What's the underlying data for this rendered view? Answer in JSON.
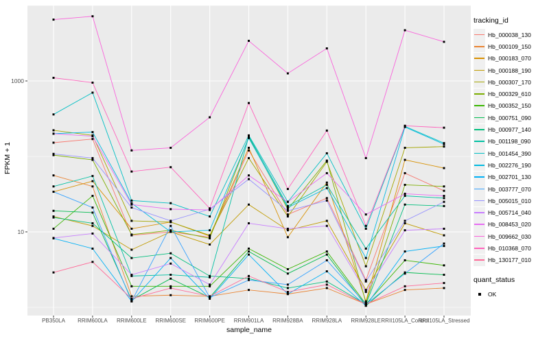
{
  "figure": {
    "panel_background": "#ebebeb",
    "gridline_color": "#ffffff",
    "axis_text_color": "#4d4d4d",
    "point_color": "#000000",
    "legend_key_background": "#f0f0f0"
  },
  "chart_data": {
    "type": "line",
    "title": "",
    "xlabel": "sample_name",
    "ylabel": "FPKM + 1",
    "y_scale": "log10",
    "grid": true,
    "legend_position": "right",
    "legend_title": "tracking_id",
    "point_legend": {
      "title": "quant_status",
      "items": [
        {
          "label": "OK"
        }
      ]
    },
    "ylim": [
      0.75,
      10000
    ],
    "y_ticks": [
      {
        "label": "1000",
        "value": 1000
      },
      {
        "label": "10",
        "value": 10
      }
    ],
    "y_minor": [
      10000,
      100,
      1
    ],
    "categories": [
      "PB350LA",
      "RRIM600LA",
      "RRIM600LE",
      "RRIM600SE",
      "RRIM600PE",
      "RRIM901LA",
      "RRIM928BA",
      "RRIM928LA",
      "RRIM928LE",
      "RRII105LA_Control",
      "RRII105LA_Stressed"
    ],
    "point_shape": "square",
    "series": [
      {
        "name": "Hb_000038_130",
        "color": "#F8766D",
        "values": [
          152,
          170,
          9,
          10,
          8.5,
          120,
          17,
          28,
          2.3,
          60,
          35
        ]
      },
      {
        "name": "Hb_000109_150",
        "color": "#EA8331",
        "values": [
          56,
          40,
          1.4,
          1.45,
          1.4,
          1.7,
          1.5,
          1.8,
          1.1,
          1.7,
          1.8
        ]
      },
      {
        "name": "Hb_000183_070",
        "color": "#D89000",
        "values": [
          34,
          47,
          11,
          13.5,
          8.8,
          130,
          8.5,
          45,
          1.2,
          90,
          70
        ]
      },
      {
        "name": "Hb_000188_190",
        "color": "#C09B00",
        "values": [
          16,
          12,
          5.8,
          10,
          6.8,
          23,
          10.5,
          14,
          1.7,
          13,
          9
        ]
      },
      {
        "name": "Hb_000307_170",
        "color": "#A3A500",
        "values": [
          222,
          190,
          14,
          13.5,
          9,
          95,
          16,
          85,
          3.5,
          130,
          135
        ]
      },
      {
        "name": "Hb_000329_610",
        "color": "#7CAE00",
        "values": [
          104,
          90,
          9.2,
          10.5,
          8.2,
          180,
          20,
          88,
          1.15,
          42,
          40
        ]
      },
      {
        "name": "Hb_000352_150",
        "color": "#39B600",
        "values": [
          11,
          30,
          1.9,
          1.9,
          1.9,
          6,
          3.2,
          5.5,
          1.1,
          4.2,
          3.6
        ]
      },
      {
        "name": "Hb_000751_090",
        "color": "#00BB4E",
        "values": [
          19,
          18,
          1.25,
          2.4,
          1.35,
          5.5,
          2.8,
          5,
          1.05,
          2.9,
          2.7
        ]
      },
      {
        "name": "Hb_000977_140",
        "color": "#00BF7D",
        "values": [
          15.5,
          13,
          4.5,
          5.2,
          2.6,
          2.4,
          1.8,
          2.2,
          1.1,
          23,
          22
        ]
      },
      {
        "name": "Hb_001198_090",
        "color": "#00C1A3",
        "values": [
          40,
          55,
          2.6,
          2.7,
          2.5,
          185,
          22,
          42,
          6,
          30,
          28
        ]
      },
      {
        "name": "Hb_001454_390",
        "color": "#00BFC4",
        "values": [
          360,
          700,
          26,
          24,
          16,
          190,
          25,
          110,
          11,
          250,
          150
        ]
      },
      {
        "name": "Hb_002276_190",
        "color": "#00BAE0",
        "values": [
          200,
          210,
          24,
          10,
          10.5,
          175,
          21,
          38,
          4.5,
          245,
          145
        ]
      },
      {
        "name": "Hb_002701_130",
        "color": "#00B0F6",
        "values": [
          8.2,
          6,
          1.2,
          4.5,
          1.3,
          5,
          1.5,
          3,
          1.05,
          5.5,
          6.5
        ]
      },
      {
        "name": "Hb_003777_070",
        "color": "#35A2FF",
        "values": [
          34,
          21,
          1.2,
          12,
          1.35,
          2.3,
          2,
          4.2,
          1.1,
          2.8,
          7
        ]
      },
      {
        "name": "Hb_005015_010",
        "color": "#9590FF",
        "values": [
          108,
          95,
          21,
          14,
          20,
          50,
          19,
          26,
          2.2,
          14,
          25
        ]
      },
      {
        "name": "Hb_005714_040",
        "color": "#C77CFF",
        "values": [
          8.3,
          9.5,
          2.7,
          3.8,
          2.0,
          13,
          11,
          12,
          1.6,
          10.5,
          11
        ]
      },
      {
        "name": "Hb_008453_020",
        "color": "#E76BF3",
        "values": [
          200,
          185,
          23,
          20,
          19.5,
          56,
          25,
          60,
          17,
          32,
          30
        ]
      },
      {
        "name": "Hb_009662_030",
        "color": "#FA62DB",
        "values": [
          6500,
          7200,
          120,
          130,
          330,
          3400,
          1260,
          2700,
          95,
          4700,
          3300
        ]
      },
      {
        "name": "Hb_010368_070",
        "color": "#FF62BC",
        "values": [
          1100,
          950,
          63,
          72,
          20.5,
          510,
          37,
          220,
          12,
          255,
          240
        ]
      },
      {
        "name": "Hb_130177_010",
        "color": "#FF6A98",
        "values": [
          2.9,
          4.0,
          1.3,
          1.8,
          1.4,
          2.6,
          1.6,
          2.0,
          1.1,
          1.9,
          2.1
        ]
      }
    ]
  }
}
